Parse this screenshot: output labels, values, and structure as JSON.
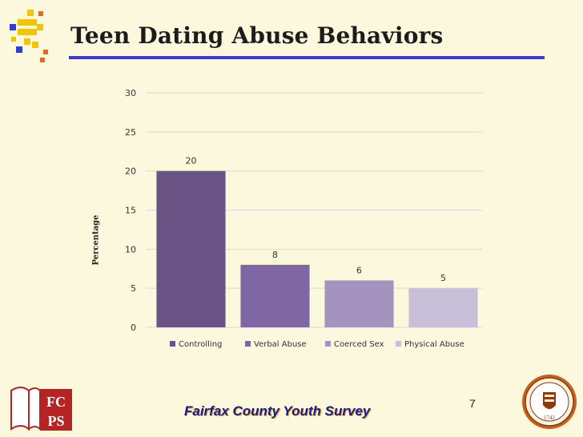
{
  "slide": {
    "title": "Teen Dating Abuse Behaviors",
    "footer": "Fairfax County Youth Survey",
    "page_number": "7"
  },
  "logos": {
    "left": {
      "name": "fcps-logo",
      "text_top": "FC",
      "text_bottom": "PS"
    },
    "right": {
      "name": "county-seal",
      "text_bottom": "1742"
    }
  },
  "colors": {
    "background": "#FBF8DD",
    "title_rule": "#3A3ADC",
    "footer_text": "#1A1A8C",
    "gridline": "#D9D9D9"
  },
  "chart_data": {
    "type": "bar",
    "categories": [
      "Controlling",
      "Verbal Abuse",
      "Coerced Sex",
      "Physical Abuse"
    ],
    "values": [
      20,
      8,
      6,
      5
    ],
    "bar_colors": [
      "#6A5486",
      "#7F67A3",
      "#A393BE",
      "#C8BFD9"
    ],
    "data_labels": [
      "20",
      "8",
      "6",
      "5"
    ],
    "ylabel": "Percentage",
    "ylim": [
      0,
      30
    ],
    "yticks": [
      0,
      5,
      10,
      15,
      20,
      25,
      30
    ],
    "grid": true,
    "legend": "bottom"
  }
}
